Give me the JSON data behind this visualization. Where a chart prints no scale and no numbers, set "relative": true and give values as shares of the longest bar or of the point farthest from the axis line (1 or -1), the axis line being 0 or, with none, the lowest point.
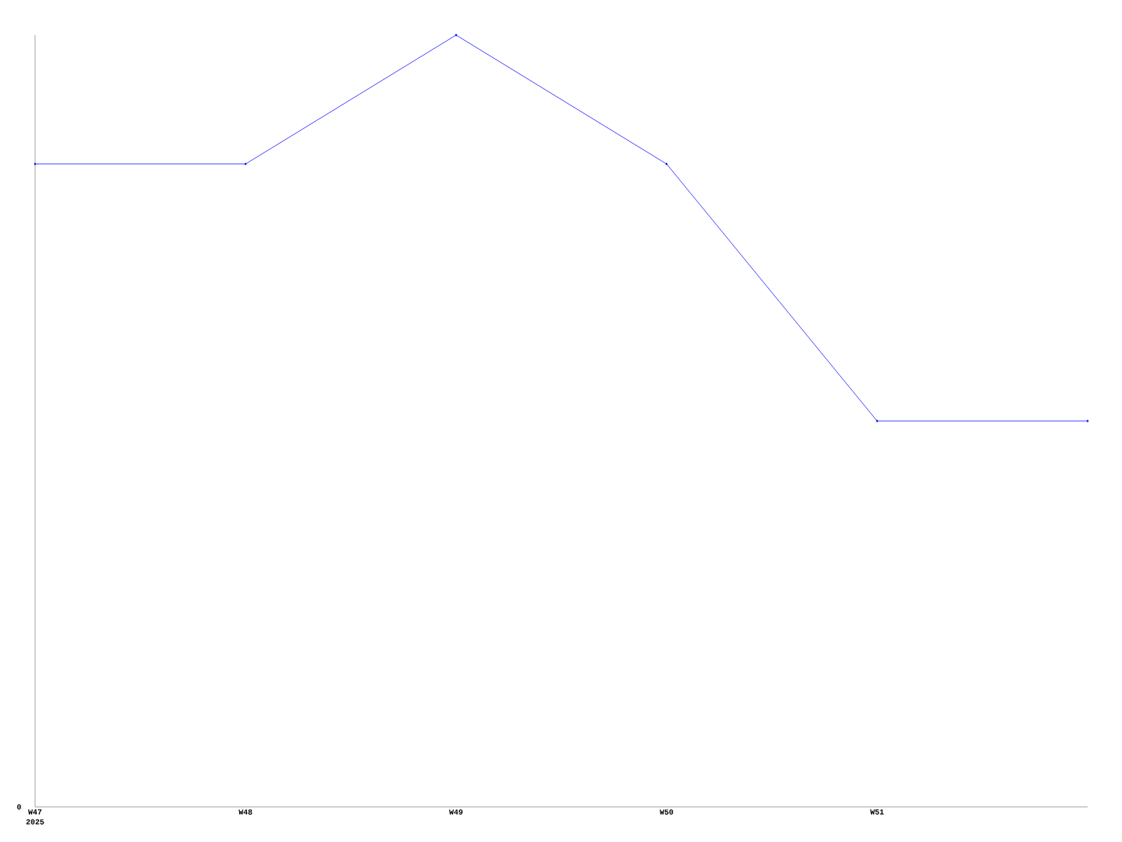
{
  "chart_data": {
    "type": "line",
    "relative": true,
    "categories": [
      "W47",
      "W48",
      "W49",
      "W50",
      "W51",
      null
    ],
    "series": [
      {
        "color": "#0000ff",
        "values": [
          0.833,
          0.833,
          1,
          0.833,
          0.5,
          0.5
        ]
      }
    ],
    "marker": "diamond",
    "annotations": [
      "2025",
      "0"
    ]
  }
}
